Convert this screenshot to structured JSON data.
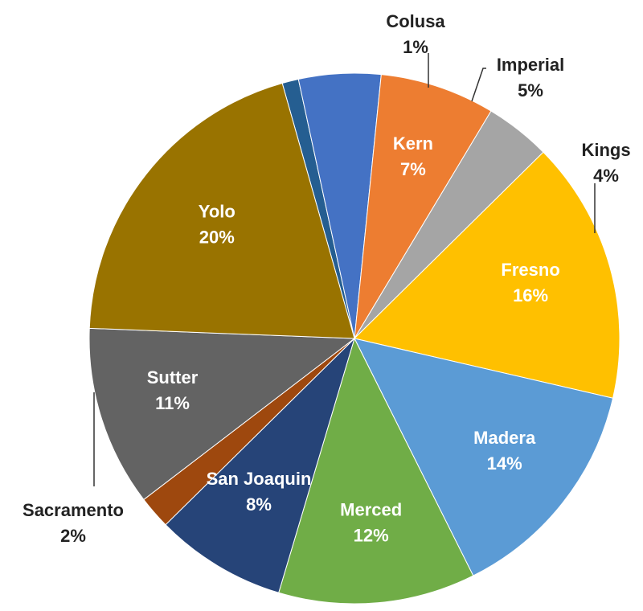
{
  "chart_data": {
    "type": "pie",
    "title": "",
    "start_angle_deg": -15.8,
    "direction": "clockwise",
    "slices": [
      {
        "name": "Colusa",
        "value": 1,
        "label": "1%",
        "color": "#255E91",
        "label_placement": "outside"
      },
      {
        "name": "Imperial",
        "value": 5,
        "label": "5%",
        "color": "#4472C4",
        "label_placement": "outside"
      },
      {
        "name": "Kern",
        "value": 7,
        "label": "7%",
        "color": "#ED7D31",
        "label_placement": "inside"
      },
      {
        "name": "Kings",
        "value": 4,
        "label": "4%",
        "color": "#A5A5A5",
        "label_placement": "outside"
      },
      {
        "name": "Fresno",
        "value": 16,
        "label": "16%",
        "color": "#FFC000",
        "label_placement": "inside"
      },
      {
        "name": "Madera",
        "value": 14,
        "label": "14%",
        "color": "#5B9BD5",
        "label_placement": "inside"
      },
      {
        "name": "Merced",
        "value": 12,
        "label": "12%",
        "color": "#70AD47",
        "label_placement": "inside"
      },
      {
        "name": "San Joaquin",
        "value": 8,
        "label": "8%",
        "color": "#264478",
        "label_placement": "inside"
      },
      {
        "name": "Sacramento",
        "value": 2,
        "label": "2%",
        "color": "#9E480E",
        "label_placement": "outside"
      },
      {
        "name": "Sutter",
        "value": 11,
        "label": "11%",
        "color": "#636363",
        "label_placement": "inside"
      },
      {
        "name": "Yolo",
        "value": 20,
        "label": "20%",
        "color": "#997300",
        "label_placement": "inside"
      }
    ]
  }
}
